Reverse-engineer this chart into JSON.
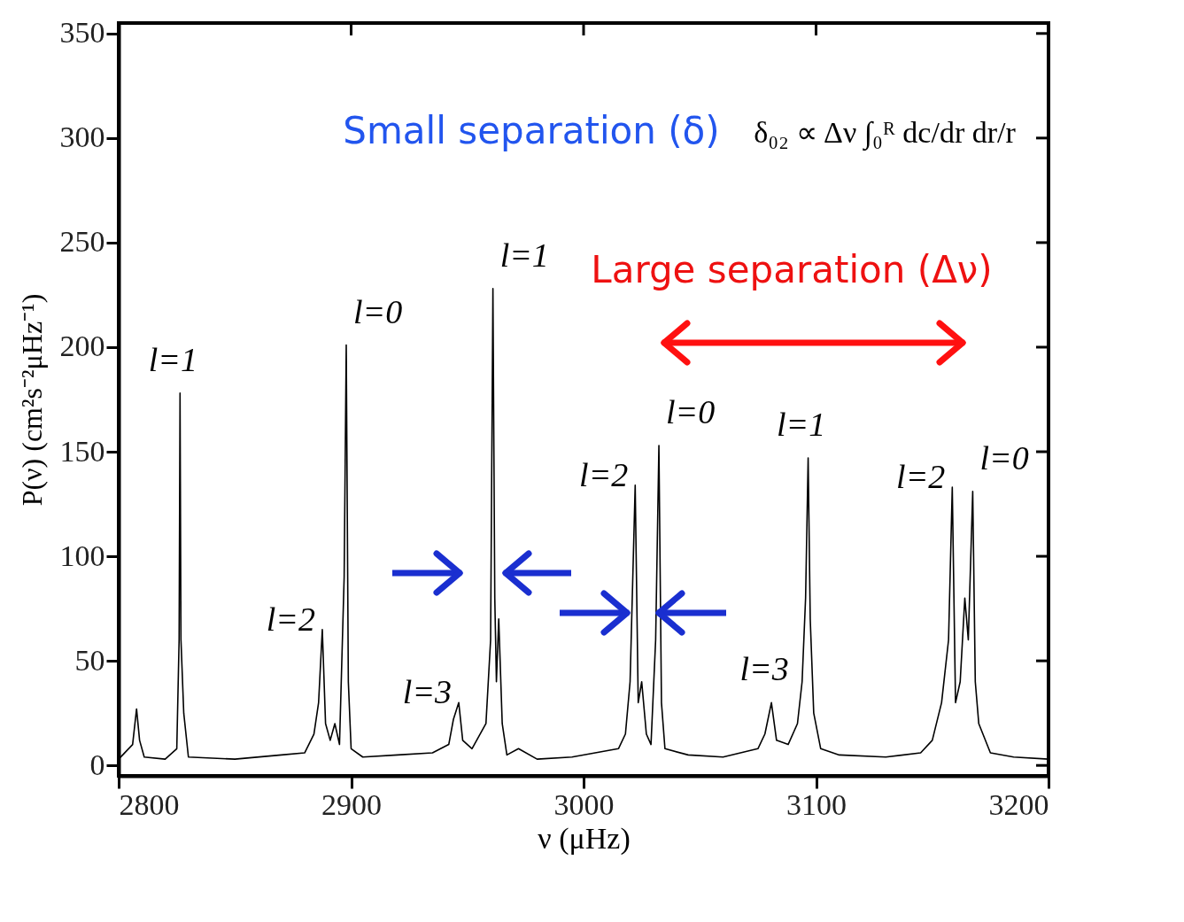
{
  "chart_data": {
    "type": "line",
    "xlabel": "ν (μHz)",
    "ylabel": "P(ν) (cm²s⁻²μHz⁻¹)",
    "xlim": [
      2800,
      3200
    ],
    "xticks": [
      2800,
      2900,
      3000,
      3100,
      3200
    ],
    "ylim": [
      -5,
      355
    ],
    "yticks": [
      0,
      50,
      100,
      150,
      200,
      250,
      300,
      350
    ],
    "grid": false,
    "marker": "none",
    "line_style": "solid",
    "series": [
      {
        "color": "#000000",
        "x": [
          2800,
          2806,
          2807.7,
          2809,
          2811,
          2820,
          2825,
          2826,
          2826.4,
          2826.8,
          2828,
          2830,
          2850,
          2870,
          2880,
          2884,
          2886,
          2887.6,
          2889,
          2891,
          2893,
          2895,
          2897,
          2897.9,
          2898.8,
          2900,
          2905,
          2920,
          2935,
          2942,
          2944,
          2946.3,
          2948,
          2952,
          2958,
          2960,
          2961,
          2961.8,
          2962.5,
          2963.5,
          2965,
          2967,
          2972,
          2980,
          2995,
          3005,
          3015,
          3018,
          3020,
          3022.2,
          3023.5,
          3025,
          3027,
          3029,
          3031,
          3032.4,
          3033.5,
          3035,
          3045,
          3060,
          3075,
          3078,
          3080.8,
          3083,
          3088,
          3092,
          3094,
          3095.5,
          3096.6,
          3097.5,
          3099,
          3102,
          3110,
          3130,
          3145,
          3150,
          3154,
          3157,
          3158.6,
          3160,
          3162,
          3164,
          3165.5,
          3167.4,
          3168.5,
          3170,
          3175,
          3185,
          3200
        ],
        "values": [
          3,
          10,
          27,
          12,
          4,
          3,
          8,
          60,
          178,
          60,
          25,
          4,
          3,
          5,
          6,
          15,
          30,
          65,
          20,
          12,
          20,
          10,
          90,
          201,
          40,
          8,
          4,
          5,
          6,
          10,
          22,
          30,
          12,
          8,
          20,
          60,
          228,
          80,
          40,
          70,
          20,
          5,
          8,
          3,
          4,
          6,
          8,
          15,
          40,
          134,
          30,
          40,
          15,
          10,
          60,
          153,
          30,
          8,
          5,
          4,
          8,
          15,
          30,
          12,
          10,
          20,
          40,
          80,
          147,
          70,
          25,
          8,
          5,
          4,
          6,
          12,
          30,
          60,
          133,
          30,
          40,
          80,
          60,
          131,
          40,
          20,
          6,
          4,
          3
        ]
      }
    ],
    "annotations": [
      {
        "text": "l=1",
        "x": 2826.4,
        "y": 178
      },
      {
        "text": "l=2",
        "x": 2887.6,
        "y": 65
      },
      {
        "text": "l=0",
        "x": 2897.9,
        "y": 201
      },
      {
        "text": "l=3",
        "x": 2946.3,
        "y": 30
      },
      {
        "text": "l=1",
        "x": 2961,
        "y": 228
      },
      {
        "text": "l=2",
        "x": 3022.2,
        "y": 134
      },
      {
        "text": "l=0",
        "x": 3032.4,
        "y": 153
      },
      {
        "text": "l=3",
        "x": 3080.8,
        "y": 30
      },
      {
        "text": "l=1",
        "x": 3096.6,
        "y": 147
      },
      {
        "text": "l=2",
        "x": 3158.6,
        "y": 133
      },
      {
        "text": "l=0",
        "x": 3167.4,
        "y": 131
      },
      "Small separation (δ)",
      "Large separation (Δν)",
      "δ₀₂ ∝ Δν ∫₀ᴿ dc/dr dr/r"
    ]
  }
}
